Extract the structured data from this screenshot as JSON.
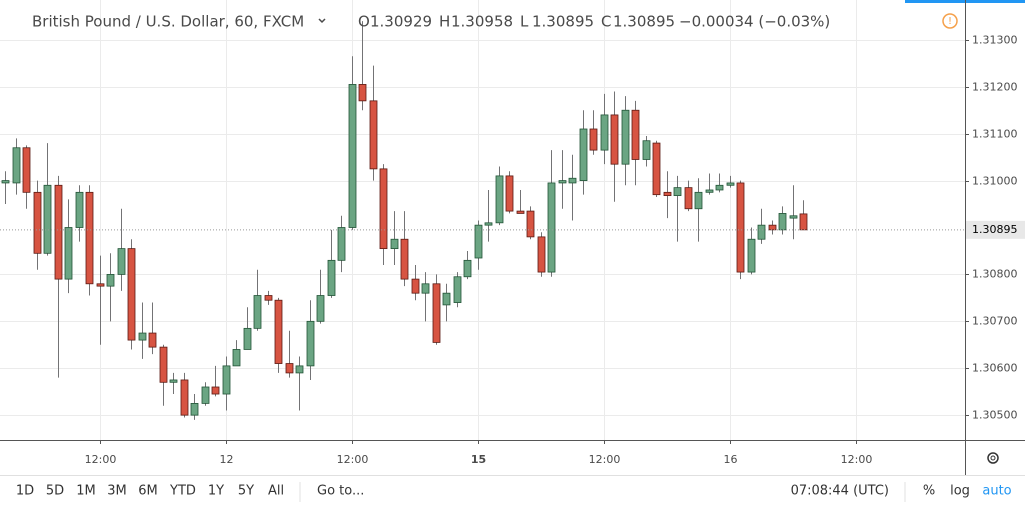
{
  "chart_data": {
    "type": "candlestick",
    "title": "British Pound / U.S. Dollar, 60, FXCM",
    "ohlc_letters": [
      "O",
      "H",
      "L",
      "C"
    ],
    "change": "−0.00034 (−0.03%)",
    "open": [
      1.30995,
      1.30995,
      1.3107,
      1.30975,
      1.30845,
      1.3099,
      1.3079,
      1.309,
      1.30975,
      1.3078,
      1.30775,
      1.308,
      1.30855,
      1.3066,
      1.30675,
      1.30645,
      1.3057,
      1.30575,
      1.305,
      1.30525,
      1.3056,
      1.30545,
      1.30605,
      1.3064,
      1.30685,
      1.30755,
      1.30745,
      1.3061,
      1.3059,
      1.30605,
      1.307,
      1.30755,
      1.3083,
      1.309,
      1.31205,
      1.3117,
      1.31025,
      1.30855,
      1.30875,
      1.3079,
      1.3076,
      1.3078,
      1.30735,
      1.3074,
      1.30795,
      1.30835,
      1.30905,
      1.3091,
      1.3101,
      1.30935,
      1.30935,
      1.3088,
      1.30805,
      1.30995,
      1.30995,
      1.31,
      1.3111,
      1.31065,
      1.3114,
      1.31035,
      1.3115,
      1.31045,
      1.3108,
      1.30975,
      1.30968,
      1.30985,
      1.3094,
      1.30975,
      1.3098,
      1.3099,
      1.30995,
      1.30805,
      1.30875,
      1.30905,
      1.30895,
      1.3092,
      1.30929
    ],
    "high": [
      1.3102,
      1.3109,
      1.31075,
      1.31,
      1.3108,
      1.3101,
      1.3096,
      1.3099,
      1.3099,
      1.3084,
      1.30845,
      1.3094,
      1.30875,
      1.3074,
      1.3074,
      1.3065,
      1.3059,
      1.3059,
      1.30545,
      1.3057,
      1.30605,
      1.30625,
      1.3066,
      1.3073,
      1.3081,
      1.30765,
      1.3075,
      1.3068,
      1.30625,
      1.30745,
      1.3081,
      1.30895,
      1.30925,
      1.31265,
      1.3134,
      1.31245,
      1.31035,
      1.30935,
      1.30935,
      1.3082,
      1.30805,
      1.308,
      1.3078,
      1.30805,
      1.3085,
      1.30915,
      1.3098,
      1.3103,
      1.3102,
      1.3098,
      1.30945,
      1.3089,
      1.31065,
      1.31065,
      1.31055,
      1.3115,
      1.3115,
      1.31185,
      1.3119,
      1.3118,
      1.3117,
      1.31095,
      1.31085,
      1.3102,
      1.3101,
      1.31,
      1.31005,
      1.31015,
      1.31015,
      1.3101,
      1.31,
      1.309,
      1.3094,
      1.30915,
      1.30945,
      1.3099,
      1.30958
    ],
    "low": [
      1.3095,
      1.3097,
      1.3094,
      1.3081,
      1.3084,
      1.3058,
      1.3076,
      1.3087,
      1.30755,
      1.3065,
      1.307,
      1.30765,
      1.3064,
      1.3062,
      1.3063,
      1.3052,
      1.30545,
      1.30495,
      1.3049,
      1.3052,
      1.3054,
      1.3051,
      1.30605,
      1.3064,
      1.3068,
      1.30735,
      1.3059,
      1.3058,
      1.3051,
      1.30575,
      1.30695,
      1.3075,
      1.30805,
      1.30895,
      1.3115,
      1.31,
      1.3082,
      1.3082,
      1.30775,
      1.30745,
      1.307,
      1.3065,
      1.307,
      1.3073,
      1.3079,
      1.3081,
      1.3087,
      1.30905,
      1.3093,
      1.3093,
      1.30875,
      1.30795,
      1.30795,
      1.3094,
      1.30915,
      1.3097,
      1.31055,
      1.31035,
      1.30955,
      1.3099,
      1.3099,
      1.3103,
      1.30965,
      1.3092,
      1.3087,
      1.30935,
      1.3087,
      1.3097,
      1.30975,
      1.30985,
      1.3079,
      1.308,
      1.30865,
      1.30885,
      1.30885,
      1.30875,
      1.30895
    ],
    "close": [
      1.31,
      1.3107,
      1.30975,
      1.30845,
      1.3099,
      1.3079,
      1.309,
      1.30975,
      1.3078,
      1.30775,
      1.308,
      1.30855,
      1.3066,
      1.30675,
      1.30645,
      1.3057,
      1.30575,
      1.305,
      1.30525,
      1.3056,
      1.30545,
      1.30605,
      1.3064,
      1.30685,
      1.30755,
      1.30745,
      1.3061,
      1.3059,
      1.30605,
      1.307,
      1.30755,
      1.3083,
      1.309,
      1.31205,
      1.3117,
      1.31025,
      1.30855,
      1.30875,
      1.3079,
      1.3076,
      1.3078,
      1.30655,
      1.3076,
      1.30795,
      1.3083,
      1.30905,
      1.3091,
      1.3101,
      1.30935,
      1.3093,
      1.3088,
      1.30805,
      1.30995,
      1.31,
      1.31005,
      1.3111,
      1.31065,
      1.3114,
      1.31035,
      1.3115,
      1.31045,
      1.31085,
      1.3097,
      1.30968,
      1.30985,
      1.3094,
      1.30975,
      1.3098,
      1.3099,
      1.30995,
      1.30805,
      1.30875,
      1.30905,
      1.30895,
      1.3093,
      1.30925,
      1.30895
    ],
    "up_color": "#6ba583",
    "up_border": "#225437",
    "down_color": "#d75442",
    "down_border": "#5b1a13",
    "ylim": [
      1.30447,
      1.31385
    ],
    "yticks": [
      {
        "value": 1.305,
        "label": "1.30500"
      },
      {
        "value": 1.306,
        "label": "1.30600"
      },
      {
        "value": 1.307,
        "label": "1.30700"
      },
      {
        "value": 1.308,
        "label": "1.30800"
      },
      {
        "value": 1.31,
        "label": "1.31000"
      },
      {
        "value": 1.311,
        "label": "1.31100"
      },
      {
        "value": 1.312,
        "label": "1.31200"
      },
      {
        "value": 1.313,
        "label": "1.31300"
      }
    ],
    "xlim": [
      -0.5,
      91.4
    ],
    "xticks": [
      {
        "value": 9,
        "label": "12:00"
      },
      {
        "value": 21,
        "label": "12"
      },
      {
        "value": 33,
        "label": "12:00"
      },
      {
        "value": 45,
        "label": "15"
      },
      {
        "value": 57,
        "label": "12:00"
      },
      {
        "value": 69,
        "label": "16"
      },
      {
        "value": 81,
        "label": "12:00"
      }
    ],
    "grid": true
  },
  "toolbar": {
    "ranges": [
      "1D",
      "5D",
      "1M",
      "3M",
      "6M",
      "YTD",
      "1Y",
      "5Y",
      "All"
    ],
    "goto": "Go to...",
    "clock": "07:08:44 (UTC)",
    "percent": "%",
    "log": "log",
    "auto": "auto"
  }
}
